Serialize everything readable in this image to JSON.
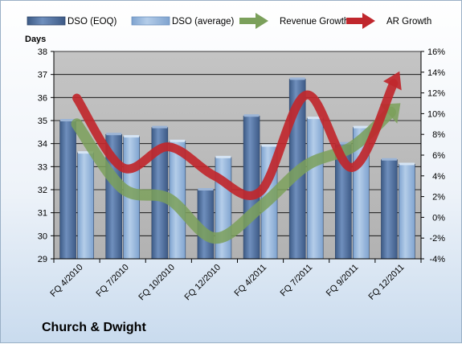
{
  "chart_data": {
    "type": "bar",
    "title": "Church & Dwight",
    "y_left_label": "Days",
    "categories": [
      "FQ 4/2010",
      "FQ 7/2010",
      "FQ 10/2010",
      "FQ 12/2010",
      "FQ 4/2011",
      "FQ 7/2011",
      "FQ 9/2011",
      "FQ 12/2011"
    ],
    "ylim_left": [
      29,
      38
    ],
    "yticks_left": [
      "29",
      "30",
      "31",
      "32",
      "33",
      "34",
      "35",
      "36",
      "37",
      "38"
    ],
    "ylim_right": [
      -4,
      16
    ],
    "yticks_right": [
      "-4%",
      "-2%",
      "0%",
      "2%",
      "4%",
      "6%",
      "8%",
      "10%",
      "12%",
      "14%",
      "16%"
    ],
    "grid": true,
    "legend_position": "top",
    "series": [
      {
        "name": "DSO (EOQ)",
        "type": "bar",
        "axis": "left",
        "color": "#4f6e9b",
        "values": [
          35.0,
          34.4,
          34.7,
          32.0,
          35.2,
          36.8,
          34.0,
          33.3
        ]
      },
      {
        "name": "DSO (average)",
        "type": "bar",
        "axis": "left",
        "color": "#8fb2dc",
        "values": [
          33.6,
          34.3,
          34.1,
          33.4,
          33.9,
          35.1,
          34.7,
          33.1
        ]
      },
      {
        "name": "Revenue Growth",
        "type": "line",
        "axis": "right",
        "color": "#7ba05b",
        "values": [
          9.0,
          2.8,
          1.8,
          -2.0,
          1.0,
          5.0,
          6.8,
          10.8
        ]
      },
      {
        "name": "AR Growth",
        "type": "line",
        "axis": "right",
        "color": "#c0272d",
        "values": [
          11.5,
          4.8,
          6.8,
          4.0,
          2.5,
          11.8,
          4.8,
          13.8
        ]
      }
    ]
  }
}
